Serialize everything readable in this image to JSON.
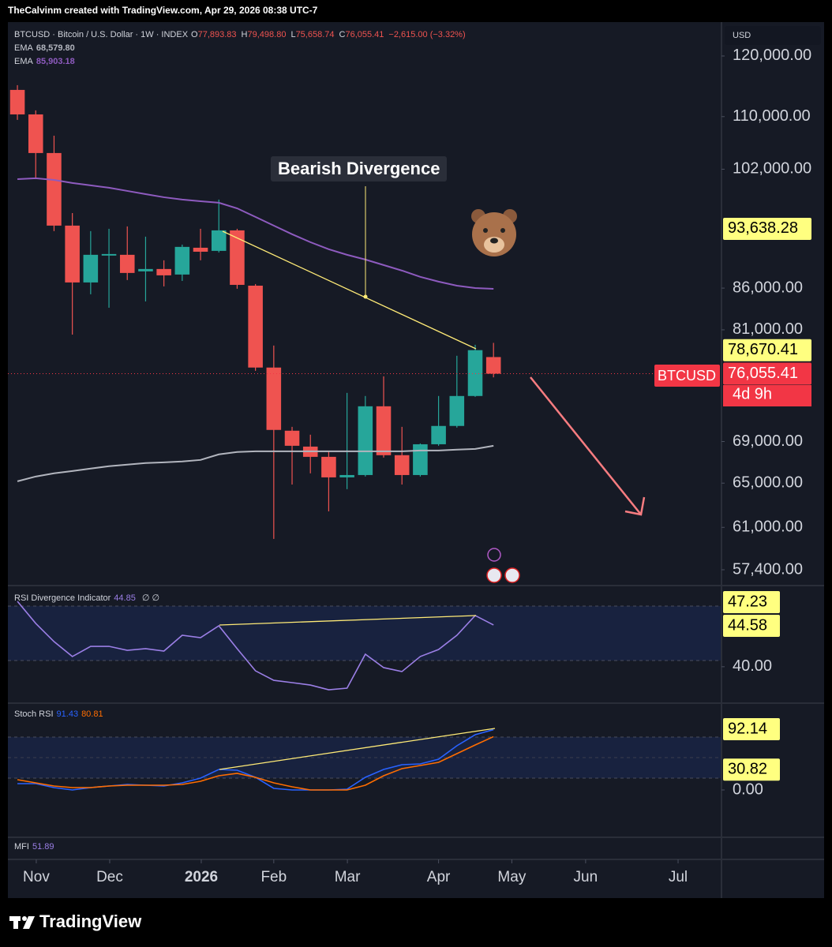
{
  "header": {
    "credit": "TheCalvinm created with TradingView.com, Apr 29, 2026 08:38 UTC-7"
  },
  "footer": {
    "brand": "TradingView"
  },
  "chart_data": [
    {
      "type": "candlestick",
      "title": "BTCUSD · Bitcoin / U.S. Dollar · 1W · INDEX",
      "legend_values": [
        {
          "prefix": "O",
          "value": 77893.83,
          "label": "77,893.83"
        },
        {
          "prefix": "H",
          "value": 79498.8,
          "label": "79,498.80"
        },
        {
          "prefix": "L",
          "value": 75658.74,
          "label": "75,658.74"
        },
        {
          "prefix": "C",
          "value": 76055.41,
          "label": "76,055.41"
        }
      ],
      "change": {
        "value": -2615,
        "label": "−2,615.00 (−3.32%)"
      },
      "currency": "USD",
      "log_scale": true,
      "up_color": "#26a69a",
      "down_color": "#ef5350",
      "x": [
        0,
        1,
        2,
        3,
        4,
        5,
        6,
        7,
        8,
        9,
        10,
        11,
        12,
        13,
        14,
        15,
        16,
        17,
        18,
        19,
        20,
        21,
        22,
        23,
        24,
        25,
        26
      ],
      "open": [
        114300,
        110350,
        104400,
        94070,
        86700,
        90110,
        90210,
        88090,
        88390,
        87690,
        91130,
        90720,
        93430,
        86300,
        76730,
        70080,
        68500,
        67500,
        65540,
        65760,
        72580,
        67660,
        65760,
        68730,
        70560,
        73660,
        77893.83
      ],
      "high": [
        115080,
        110990,
        107030,
        95780,
        93330,
        93640,
        93960,
        92590,
        89500,
        91540,
        93640,
        97650,
        93640,
        86500,
        79190,
        70470,
        69680,
        68040,
        73990,
        73660,
        75770,
        70470,
        68810,
        73660,
        78040,
        79280,
        79498.8
      ],
      "low": [
        109490,
        100680,
        93330,
        80450,
        85240,
        83610,
        87000,
        84370,
        86210,
        86890,
        89500,
        90510,
        85920,
        76370,
        60000,
        64870,
        65920,
        62420,
        64440,
        65620,
        67430,
        64870,
        65620,
        68580,
        70390,
        73570,
        75658.74
      ],
      "close": [
        110350,
        104400,
        94070,
        86700,
        90210,
        90310,
        87890,
        88390,
        87590,
        91240,
        90610,
        93430,
        86400,
        76730,
        70160,
        68580,
        67500,
        65540,
        65760,
        72580,
        67660,
        65760,
        68730,
        70560,
        73660,
        78670.41,
        76055.41
      ],
      "series": [
        {
          "name": "EMA",
          "color": "#b2b5be",
          "last": {
            "value": 68579.8,
            "label": "68,579.80"
          },
          "values": [
            65170,
            65620,
            65920,
            66140,
            66370,
            66600,
            66750,
            66900,
            66970,
            67050,
            67200,
            67740,
            67970,
            68040,
            68040,
            68040,
            68040,
            68040,
            68040,
            68040,
            68040,
            68040,
            68120,
            68120,
            68200,
            68270,
            68579.8
          ]
        },
        {
          "name": "EMA",
          "color": "#8e5bbf",
          "last": {
            "value": 85903.18,
            "label": "85,903.18"
          },
          "values": [
            100560,
            100680,
            100450,
            100010,
            99660,
            99330,
            98870,
            98420,
            97980,
            97650,
            97420,
            97210,
            96430,
            95250,
            94070,
            92910,
            91860,
            90930,
            90210,
            89600,
            88890,
            88190,
            87400,
            86800,
            86300,
            86010,
            85903.18
          ]
        }
      ],
      "xlim": [
        -0.52,
        38.45
      ],
      "xticks": [
        {
          "value": 1.03,
          "label": "Nov"
        },
        {
          "value": 5.04,
          "label": "Dec"
        },
        {
          "value": 10.04,
          "label": "2026"
        },
        {
          "value": 14.0,
          "label": "Feb"
        },
        {
          "value": 18.02,
          "label": "Mar"
        },
        {
          "value": 23.0,
          "label": "Apr"
        },
        {
          "value": 27.0,
          "label": "May"
        },
        {
          "value": 31.03,
          "label": "Jun"
        },
        {
          "value": 36.08,
          "label": "Jul"
        }
      ],
      "ylim": [
        56240,
        125700
      ],
      "yticks": [
        {
          "value": 120000,
          "label": "120,000.00"
        },
        {
          "value": 110000,
          "label": "110,000.00"
        },
        {
          "value": 102000,
          "label": "102,000.00"
        },
        {
          "value": 86000,
          "label": "86,000.00"
        },
        {
          "value": 81000,
          "label": "81,000.00"
        },
        {
          "value": 69000,
          "label": "69,000.00"
        },
        {
          "value": 65000,
          "label": "65,000.00"
        },
        {
          "value": 61000,
          "label": "61,000.00"
        },
        {
          "value": 57400,
          "label": "57,400.00"
        }
      ],
      "price_labels": [
        {
          "value": 93638.28,
          "label": "93,638.28",
          "color": "#ffff80"
        },
        {
          "value": 78670.41,
          "label": "78,670.41",
          "color": "#ffff80"
        },
        {
          "value": 76055.41,
          "label": "76,055.41",
          "color": "#f23645"
        }
      ],
      "symbol_tag": "BTCUSD",
      "countdown": "4d 9h",
      "annotation": "Bearish Divergence"
    },
    {
      "type": "line",
      "legend": {
        "name": "RSI Divergence Indicator",
        "values": [
          44.85
        ],
        "colors": [
          "#9b7fe6"
        ],
        "extra": "∅ ∅"
      },
      "x": [
        0,
        1,
        2,
        3,
        4,
        5,
        6,
        7,
        8,
        9,
        10,
        11,
        12,
        13,
        14,
        15,
        16,
        17,
        18,
        19,
        20,
        21,
        22,
        23,
        24,
        25,
        26
      ],
      "series": [
        {
          "color": "#9b7fe6",
          "values": [
            47.32,
            44.85,
            42.81,
            41.14,
            42.28,
            42.28,
            41.84,
            42.02,
            41.75,
            43.52,
            43.25,
            44.58,
            42.02,
            39.54,
            38.48,
            38.22,
            37.95,
            37.42,
            37.6,
            41.4,
            39.9,
            39.46,
            41.14,
            41.93,
            43.52,
            45.73,
            44.67
          ]
        }
      ],
      "ylim": [
        36.01,
        48.82
      ],
      "yticks": [
        {
          "value": 40,
          "label": "40.00"
        }
      ],
      "price_labels": [
        47.23,
        44.58
      ]
    },
    {
      "type": "line",
      "legend": {
        "name": "Stoch RSI",
        "values": [
          91.43,
          80.81
        ],
        "colors": [
          "#2962ff",
          "#ff6d00"
        ]
      },
      "x": [
        0,
        1,
        2,
        3,
        4,
        5,
        6,
        7,
        8,
        9,
        10,
        11,
        12,
        13,
        14,
        15,
        16,
        17,
        18,
        19,
        20,
        21,
        22,
        23,
        24,
        25,
        26
      ],
      "series": [
        {
          "color": "#2962ff",
          "values": [
            9.57,
            9.57,
            3.59,
            0,
            3.59,
            5.98,
            8.37,
            7.18,
            5.98,
            10.77,
            17.94,
            31.1,
            29.9,
            19.14,
            2.39,
            0,
            0,
            0,
            1.2,
            19.14,
            31.1,
            38.28,
            39.47,
            46.65,
            66.99,
            83.73,
            91.43
          ]
        },
        {
          "color": "#ff6d00",
          "values": [
            15.55,
            10.77,
            5.98,
            3.59,
            3.59,
            5.98,
            7.18,
            7.18,
            7.18,
            8.37,
            13.16,
            21.53,
            25.12,
            19.14,
            10.77,
            4.78,
            0,
            0,
            0,
            7.18,
            21.53,
            32.3,
            37.08,
            41.87,
            55.02,
            68.18,
            80.81
          ]
        }
      ],
      "ylim": [
        -70.6,
        129.2
      ],
      "yticks": [
        {
          "value": 0,
          "label": "0.00"
        }
      ],
      "price_labels": [
        92.14,
        30.82
      ]
    },
    {
      "type": "indicator",
      "legend": {
        "name": "MFI",
        "values": [
          51.89
        ],
        "colors": [
          "#9b7fe6"
        ]
      }
    }
  ]
}
